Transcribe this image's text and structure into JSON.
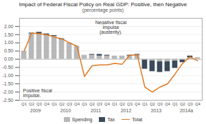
{
  "chart_data": {
    "type": "bar",
    "title": "Impact of Federal Fiscal Policy on Real GDP: Positive, then Negative",
    "subtitle": "(percentage points)",
    "categories": [
      "Q1",
      "Q2",
      "Q3",
      "Q4",
      "Q1",
      "Q2",
      "Q3",
      "Q4",
      "Q1",
      "Q2",
      "Q3",
      "Q4",
      "Q1",
      "Q2",
      "Q3",
      "Q4",
      "Q1",
      "Q2",
      "Q3",
      "Q4",
      "Q1",
      "Q2",
      "Q3",
      "Q4"
    ],
    "category_groups": [
      "2009",
      "2010",
      "2011",
      "2012",
      "2013",
      "2014a"
    ],
    "series": [
      {
        "name": "Spending",
        "color": "#b8b8b8",
        "values": [
          0.5,
          1.55,
          1.55,
          1.45,
          1.4,
          1.2,
          1.0,
          0.8,
          0.25,
          0.25,
          0.2,
          0.2,
          0.2,
          0.2,
          0.2,
          0.25,
          -0.05,
          -0.1,
          -0.15,
          -0.15,
          -0.1,
          -0.05,
          0.1,
          0.1
        ]
      },
      {
        "name": "Tax",
        "color": "#3a4a5a",
        "values": [
          0.0,
          0.05,
          0.1,
          0.1,
          0.05,
          0.05,
          0.0,
          0.0,
          0.0,
          0.05,
          0.1,
          0.05,
          0.0,
          0.0,
          0.05,
          0.05,
          -0.55,
          -0.65,
          -0.65,
          -0.6,
          -0.45,
          -0.15,
          0.1,
          0.0
        ]
      },
      {
        "name": "Total",
        "color": "#e07820",
        "type": "line",
        "values": [
          0.5,
          1.6,
          1.55,
          1.5,
          1.35,
          1.25,
          1.0,
          0.8,
          -1.05,
          -0.4,
          -0.35,
          -0.35,
          -0.25,
          -0.3,
          0.25,
          0.25,
          -1.7,
          -2.0,
          -1.7,
          -1.5,
          -0.9,
          -0.25,
          0.15,
          -0.1
        ]
      }
    ],
    "stacked": true,
    "ylim": [
      -2.5,
      2.5
    ],
    "yticks": [
      {
        "value": 2.0,
        "label": "2.00"
      },
      {
        "value": 1.5,
        "label": "1.50"
      },
      {
        "value": 1.0,
        "label": "1.00"
      },
      {
        "value": 0.5,
        "label": "0.50"
      },
      {
        "value": 0.0,
        "label": "0.00"
      },
      {
        "value": -0.5,
        "label": "-0.50"
      },
      {
        "value": -1.0,
        "label": "-1.00"
      },
      {
        "value": -1.5,
        "label": "-1.50"
      },
      {
        "value": -2.0,
        "label": "-2.00"
      },
      {
        "value": -2.5,
        "label": "-2.50"
      }
    ],
    "grid": true,
    "legend": "bottom",
    "annotations": [
      "Positive fiscal\nimpulse.",
      "Negative fiscal\nimpulse\n(austerity)."
    ]
  }
}
